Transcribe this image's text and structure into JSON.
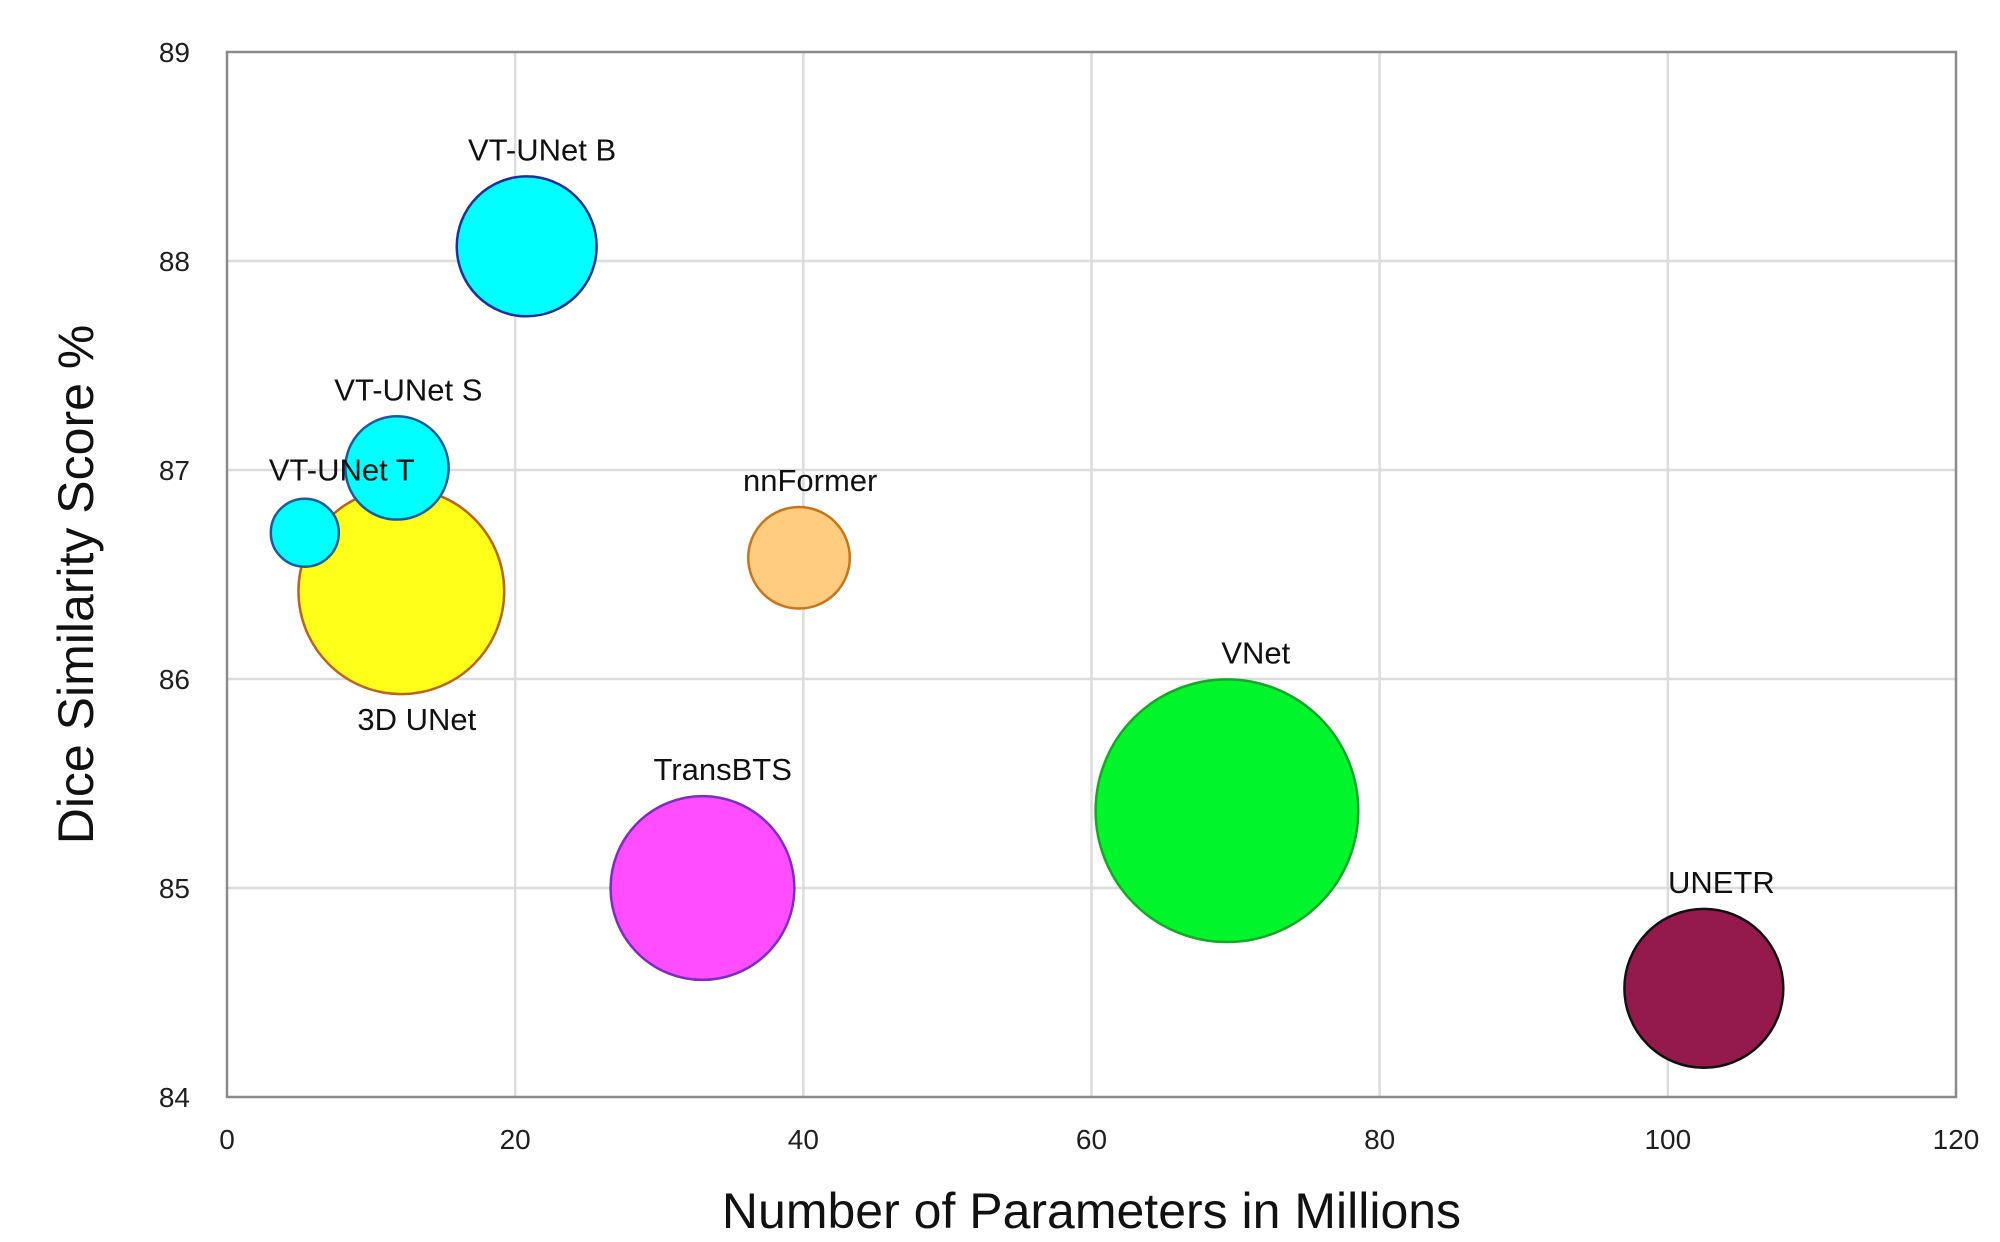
{
  "chart_data": {
    "type": "scatter",
    "subtype": "bubble",
    "title": "",
    "xlabel": "Number of Parameters in Millions",
    "ylabel": "Dice Similarity Score %",
    "xlim": [
      0,
      120
    ],
    "ylim": [
      84,
      89
    ],
    "xticks": [
      "0",
      "20",
      "40",
      "60",
      "80",
      "100",
      "120"
    ],
    "yticks": [
      "84",
      "85",
      "86",
      "87",
      "88",
      "89"
    ],
    "grid": true,
    "legend": "none",
    "points": [
      {
        "label": "3D UNet",
        "x": 12.1,
        "y": 86.42,
        "size": 11.9,
        "fill": "#ffff1a",
        "stroke": "#b8651f",
        "label_pos": "below"
      },
      {
        "label": "VNet",
        "x": 69.4,
        "y": 85.37,
        "size": 19.4,
        "fill": "#00f52a",
        "stroke": "#1aa52a",
        "label_pos": "above"
      },
      {
        "label": "TransBTS",
        "x": 33.0,
        "y": 85.0,
        "size": 9.5,
        "fill": "#ff4dff",
        "stroke": "#7a2ec2",
        "label_pos": "above"
      },
      {
        "label": "UNETR",
        "x": 102.5,
        "y": 84.52,
        "size": 7.1,
        "fill": "#931a4a",
        "stroke": "#111111",
        "label_pos": "above"
      },
      {
        "label": "nnFormer",
        "x": 39.7,
        "y": 86.58,
        "size": 2.9,
        "fill": "#ffcc80",
        "stroke": "#c8741a",
        "label_pos": "above"
      },
      {
        "label": "VT-UNet B",
        "x": 20.8,
        "y": 88.07,
        "size": 5.5,
        "fill": "#00ffff",
        "stroke": "#1d2f9a",
        "label_pos": "above"
      },
      {
        "label": "VT-UNet S",
        "x": 11.8,
        "y": 87.01,
        "size": 3.0,
        "fill": "#00ffff",
        "stroke": "#1d5a9a",
        "label_pos": "above"
      },
      {
        "label": "VT-UNet T",
        "x": 5.4,
        "y": 86.7,
        "size": 1.3,
        "fill": "#00ffff",
        "stroke": "#1d5a9a",
        "label_pos": "above"
      }
    ]
  }
}
